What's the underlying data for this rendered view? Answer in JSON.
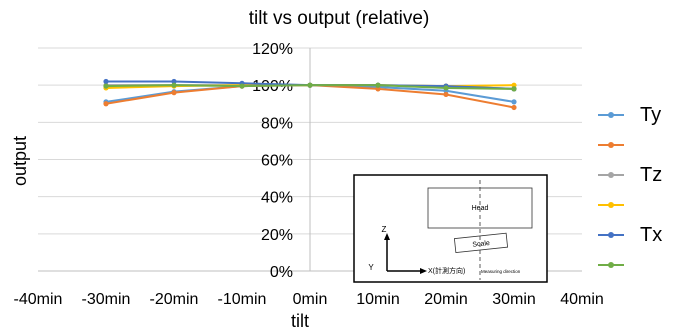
{
  "chart_data": {
    "type": "line",
    "title": "tilt vs output (relative)",
    "xlabel": "tilt",
    "ylabel": "output",
    "x_ticks": [
      "-40min",
      "-30min",
      "-20min",
      "-10min",
      "0min",
      "10min",
      "20min",
      "30min",
      "40min"
    ],
    "x": [
      -30,
      -20,
      -10,
      0,
      10,
      20,
      30
    ],
    "xlim": [
      -40,
      40
    ],
    "ylim": [
      0,
      120
    ],
    "y_ticks": [
      "0%",
      "20%",
      "40%",
      "60%",
      "80%",
      "100%",
      "120%"
    ],
    "grid": "horizontal",
    "legend_position": "right",
    "series": [
      {
        "name": "Ty",
        "color": "#5B9BD5",
        "values": [
          91,
          96.5,
          99.5,
          100,
          99,
          97,
          91
        ]
      },
      {
        "name": "",
        "color": "#ED7D31",
        "values": [
          90,
          96,
          99.5,
          100,
          98,
          95,
          88
        ]
      },
      {
        "name": "Tz",
        "color": "#A5A5A5",
        "values": [
          100,
          100,
          100,
          100,
          100,
          99.5,
          98
        ]
      },
      {
        "name": "",
        "color": "#FFC000",
        "values": [
          98.5,
          99.5,
          100,
          100,
          100,
          99.5,
          100
        ]
      },
      {
        "name": "Tx",
        "color": "#4472C4",
        "values": [
          102,
          102,
          101,
          100,
          100,
          99.5,
          98
        ]
      },
      {
        "name": "",
        "color": "#70AD47",
        "values": [
          99.5,
          100,
          99.5,
          100,
          100,
          98.5,
          98
        ]
      }
    ],
    "inset": {
      "head_label": "Head",
      "scale_label": "Scale",
      "z_label": "Z",
      "y_label": "Y",
      "x_label": "X(計測方向)",
      "direction_label": "Measuring direction"
    }
  }
}
